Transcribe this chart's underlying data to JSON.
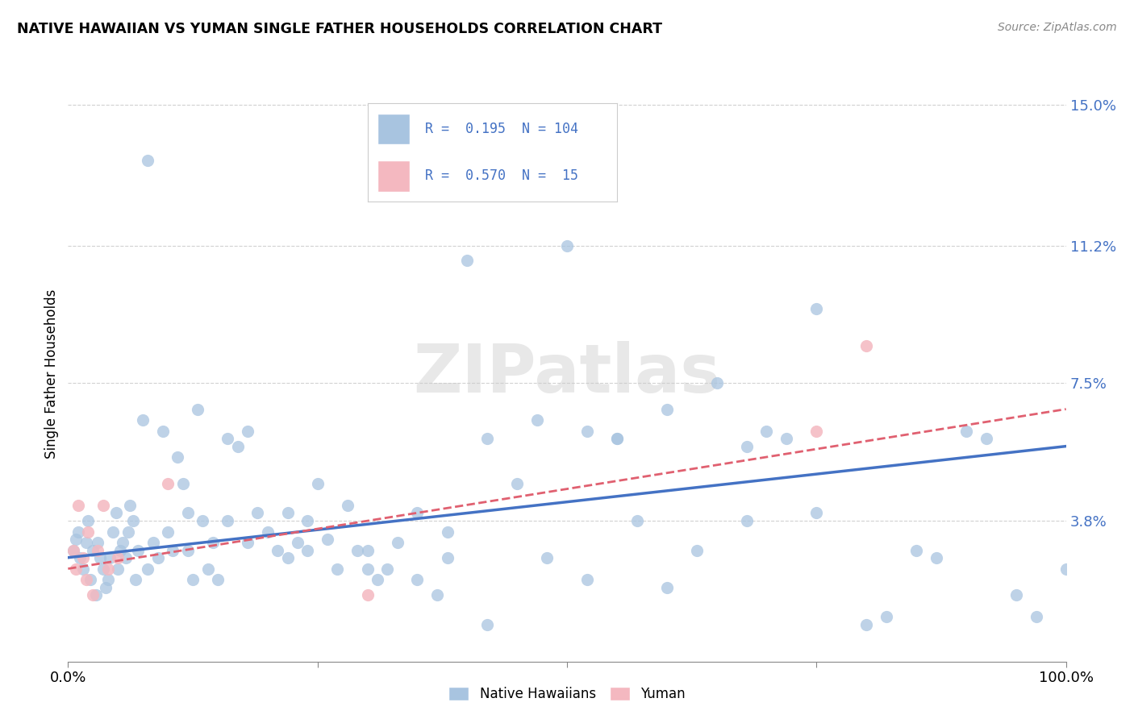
{
  "title": "NATIVE HAWAIIAN VS YUMAN SINGLE FATHER HOUSEHOLDS CORRELATION CHART",
  "source": "Source: ZipAtlas.com",
  "ylabel": "Single Father Households",
  "xlim": [
    0,
    1.0
  ],
  "ylim": [
    0,
    0.155
  ],
  "yticks": [
    0.038,
    0.075,
    0.112,
    0.15
  ],
  "ytick_labels": [
    "3.8%",
    "7.5%",
    "11.2%",
    "15.0%"
  ],
  "xticks": [
    0.0,
    0.25,
    0.5,
    0.75,
    1.0
  ],
  "xtick_labels": [
    "0.0%",
    "",
    "",
    "",
    "100.0%"
  ],
  "legend_blue_R": "0.195",
  "legend_blue_N": "104",
  "legend_pink_R": "0.570",
  "legend_pink_N": "15",
  "blue_color": "#a8c4e0",
  "pink_color": "#f4b8c0",
  "line_blue": "#4472c4",
  "line_pink": "#e06070",
  "tick_color": "#4472c4",
  "watermark_text": "ZIPatlas",
  "blue_scatter_x": [
    0.005,
    0.008,
    0.01,
    0.012,
    0.015,
    0.018,
    0.02,
    0.022,
    0.025,
    0.028,
    0.03,
    0.032,
    0.035,
    0.038,
    0.04,
    0.042,
    0.045,
    0.048,
    0.05,
    0.052,
    0.055,
    0.058,
    0.06,
    0.062,
    0.065,
    0.068,
    0.07,
    0.075,
    0.08,
    0.085,
    0.09,
    0.095,
    0.1,
    0.105,
    0.11,
    0.115,
    0.12,
    0.125,
    0.13,
    0.135,
    0.14,
    0.145,
    0.15,
    0.16,
    0.17,
    0.18,
    0.19,
    0.2,
    0.21,
    0.22,
    0.23,
    0.24,
    0.25,
    0.26,
    0.27,
    0.28,
    0.29,
    0.3,
    0.31,
    0.32,
    0.33,
    0.35,
    0.37,
    0.4,
    0.42,
    0.45,
    0.47,
    0.5,
    0.52,
    0.55,
    0.57,
    0.6,
    0.63,
    0.65,
    0.68,
    0.7,
    0.72,
    0.75,
    0.8,
    0.85,
    0.87,
    0.9,
    0.92,
    0.95,
    0.97,
    1.0,
    0.22,
    0.24,
    0.16,
    0.18,
    0.38,
    0.42,
    0.35,
    0.48,
    0.38,
    0.3,
    0.52,
    0.55,
    0.6,
    0.68,
    0.75,
    0.82,
    0.08,
    0.12
  ],
  "blue_scatter_y": [
    0.03,
    0.033,
    0.035,
    0.028,
    0.025,
    0.032,
    0.038,
    0.022,
    0.03,
    0.018,
    0.032,
    0.028,
    0.025,
    0.02,
    0.022,
    0.028,
    0.035,
    0.04,
    0.025,
    0.03,
    0.032,
    0.028,
    0.035,
    0.042,
    0.038,
    0.022,
    0.03,
    0.065,
    0.025,
    0.032,
    0.028,
    0.062,
    0.035,
    0.03,
    0.055,
    0.048,
    0.03,
    0.022,
    0.068,
    0.038,
    0.025,
    0.032,
    0.022,
    0.038,
    0.058,
    0.032,
    0.04,
    0.035,
    0.03,
    0.028,
    0.032,
    0.038,
    0.048,
    0.033,
    0.025,
    0.042,
    0.03,
    0.025,
    0.022,
    0.025,
    0.032,
    0.022,
    0.018,
    0.108,
    0.06,
    0.048,
    0.065,
    0.112,
    0.062,
    0.06,
    0.038,
    0.02,
    0.03,
    0.075,
    0.038,
    0.062,
    0.06,
    0.04,
    0.01,
    0.03,
    0.028,
    0.062,
    0.06,
    0.018,
    0.012,
    0.025,
    0.04,
    0.03,
    0.06,
    0.062,
    0.028,
    0.01,
    0.04,
    0.028,
    0.035,
    0.03,
    0.022,
    0.06,
    0.068,
    0.058,
    0.095,
    0.012,
    0.135,
    0.04
  ],
  "pink_scatter_x": [
    0.005,
    0.008,
    0.01,
    0.015,
    0.018,
    0.02,
    0.025,
    0.03,
    0.035,
    0.04,
    0.05,
    0.1,
    0.3,
    0.75,
    0.8
  ],
  "pink_scatter_y": [
    0.03,
    0.025,
    0.042,
    0.028,
    0.022,
    0.035,
    0.018,
    0.03,
    0.042,
    0.025,
    0.028,
    0.048,
    0.018,
    0.062,
    0.085
  ],
  "blue_line_y_start": 0.028,
  "blue_line_y_end": 0.058,
  "pink_line_y_start": 0.025,
  "pink_line_y_end": 0.068
}
